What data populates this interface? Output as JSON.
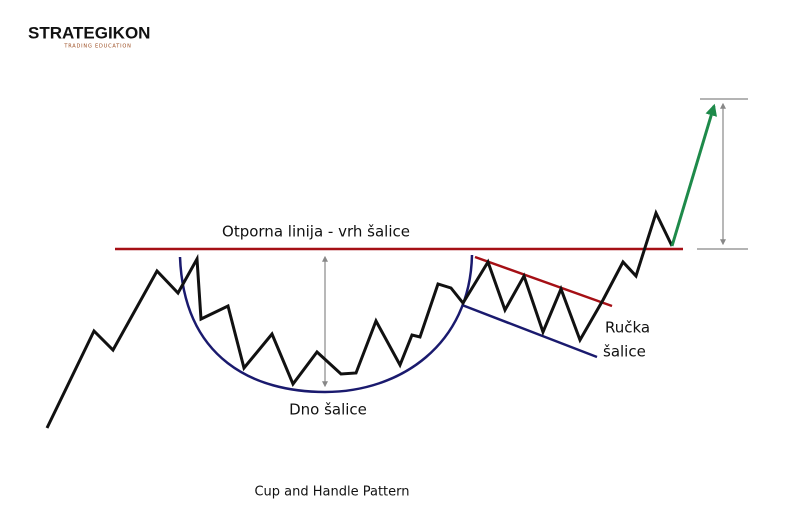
{
  "logo": {
    "name": "STRATEGIKON",
    "tagline": "TRADING EDUCATION"
  },
  "labels": {
    "resistance": "Otporna linija - vrh šalice",
    "bottom": "Dno šalice",
    "handle_line1": "Ručka",
    "handle_line2": "šalice"
  },
  "caption": "Cup and Handle Pattern"
}
